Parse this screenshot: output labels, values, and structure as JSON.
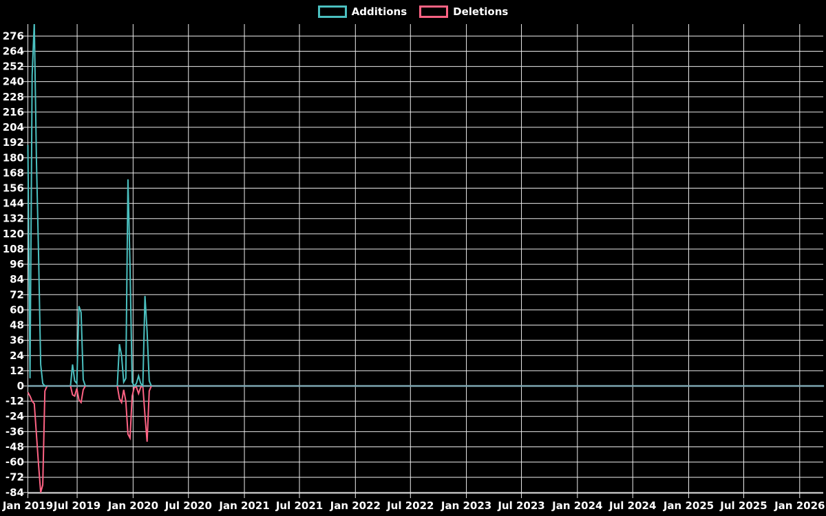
{
  "legend": {
    "items": [
      {
        "label": "Additions",
        "color": "#4BC0C0"
      },
      {
        "label": "Deletions",
        "color": "#FF6384"
      }
    ]
  },
  "chart_data": {
    "type": "line",
    "title": "",
    "legend_position": "top",
    "grid": true,
    "colors": {
      "background": "#000000",
      "grid": "#ededed",
      "text": "#ffffff",
      "additions": "#4BC0C0",
      "deletions": "#FF6384",
      "zero_line": "#7FA8B4"
    },
    "x_axis": {
      "start": "2019-01-20",
      "end": "2026-03-22",
      "ticks": [
        {
          "label": "Jan 2019",
          "date": "2019-01-20"
        },
        {
          "label": "Jul 2019",
          "date": "2019-07-01"
        },
        {
          "label": "Jan 2020",
          "date": "2020-01-01"
        },
        {
          "label": "Jul 2020",
          "date": "2020-07-01"
        },
        {
          "label": "Jan 2021",
          "date": "2021-01-01"
        },
        {
          "label": "Jul 2021",
          "date": "2021-07-01"
        },
        {
          "label": "Jan 2022",
          "date": "2022-01-01"
        },
        {
          "label": "Jul 2022",
          "date": "2022-07-01"
        },
        {
          "label": "Jan 2023",
          "date": "2023-01-01"
        },
        {
          "label": "Jul 2023",
          "date": "2023-07-01"
        },
        {
          "label": "Jan 2024",
          "date": "2024-01-01"
        },
        {
          "label": "Jul 2024",
          "date": "2024-07-01"
        },
        {
          "label": "Jan 2025",
          "date": "2025-01-01"
        },
        {
          "label": "Jul 2025",
          "date": "2025-07-01"
        },
        {
          "label": "Jan 2026",
          "date": "2026-01-01"
        }
      ]
    },
    "y_axis": {
      "min": -84,
      "max": 288,
      "step": 12,
      "tick_labels": [
        276,
        264,
        252,
        240,
        228,
        216,
        204,
        192,
        180,
        168,
        156,
        144,
        132,
        120,
        108,
        96,
        84,
        72,
        60,
        48,
        36,
        24,
        12,
        0,
        -12,
        -24,
        -36,
        -48,
        -60,
        -72,
        -84
      ]
    },
    "baseline": {
      "value": 0,
      "note": "both series are 0 between and after the listed segments"
    },
    "series": [
      {
        "name": "Additions",
        "color": "#4BC0C0",
        "segments": [
          [
            [
              "2019-01-20",
              190
            ],
            [
              "2019-01-27",
              6
            ],
            [
              "2019-02-03",
              245
            ],
            [
              "2019-02-10",
              287
            ],
            [
              "2019-02-17",
              179
            ],
            [
              "2019-02-24",
              104
            ],
            [
              "2019-03-03",
              17
            ],
            [
              "2019-03-10",
              2
            ],
            [
              "2019-03-17",
              0
            ],
            [
              "2019-03-24",
              0
            ]
          ],
          [
            [
              "2019-06-09",
              0
            ],
            [
              "2019-06-16",
              17
            ],
            [
              "2019-06-23",
              4
            ],
            [
              "2019-06-30",
              2
            ],
            [
              "2019-07-07",
              63
            ],
            [
              "2019-07-14",
              58
            ],
            [
              "2019-07-21",
              5
            ],
            [
              "2019-07-28",
              0
            ]
          ],
          [
            [
              "2019-11-10",
              0
            ],
            [
              "2019-11-17",
              33
            ],
            [
              "2019-11-24",
              24
            ],
            [
              "2019-12-01",
              3
            ],
            [
              "2019-12-08",
              6
            ],
            [
              "2019-12-15",
              163
            ],
            [
              "2019-12-22",
              94
            ],
            [
              "2019-12-29",
              3
            ],
            [
              "2020-01-05",
              0
            ],
            [
              "2020-01-12",
              2
            ],
            [
              "2020-01-19",
              8
            ],
            [
              "2020-01-26",
              2
            ],
            [
              "2020-02-02",
              0
            ],
            [
              "2020-02-09",
              71
            ],
            [
              "2020-02-16",
              43
            ],
            [
              "2020-02-23",
              4
            ],
            [
              "2020-03-01",
              0
            ]
          ]
        ]
      },
      {
        "name": "Deletions",
        "color": "#FF6384",
        "segments": [
          [
            [
              "2019-01-20",
              -5
            ],
            [
              "2019-01-27",
              -8
            ],
            [
              "2019-02-03",
              -12
            ],
            [
              "2019-02-10",
              -14
            ],
            [
              "2019-02-17",
              -38
            ],
            [
              "2019-02-24",
              -62
            ],
            [
              "2019-03-03",
              -84
            ],
            [
              "2019-03-10",
              -78
            ],
            [
              "2019-03-17",
              -4
            ],
            [
              "2019-03-24",
              0
            ]
          ],
          [
            [
              "2019-06-09",
              0
            ],
            [
              "2019-06-16",
              -7
            ],
            [
              "2019-06-23",
              -8
            ],
            [
              "2019-06-30",
              -2
            ],
            [
              "2019-07-07",
              -11
            ],
            [
              "2019-07-14",
              -13
            ],
            [
              "2019-07-21",
              -3
            ],
            [
              "2019-07-28",
              0
            ]
          ],
          [
            [
              "2019-11-10",
              0
            ],
            [
              "2019-11-17",
              -10
            ],
            [
              "2019-11-24",
              -13
            ],
            [
              "2019-12-01",
              -3
            ],
            [
              "2019-12-08",
              -12
            ],
            [
              "2019-12-15",
              -38
            ],
            [
              "2019-12-22",
              -41
            ],
            [
              "2019-12-29",
              -8
            ],
            [
              "2020-01-05",
              -1
            ],
            [
              "2020-01-12",
              -1
            ],
            [
              "2020-01-19",
              -6
            ],
            [
              "2020-01-26",
              -1
            ],
            [
              "2020-02-02",
              0
            ],
            [
              "2020-02-09",
              -23
            ],
            [
              "2020-02-16",
              -44
            ],
            [
              "2020-02-23",
              -4
            ],
            [
              "2020-03-01",
              0
            ]
          ]
        ]
      }
    ]
  }
}
